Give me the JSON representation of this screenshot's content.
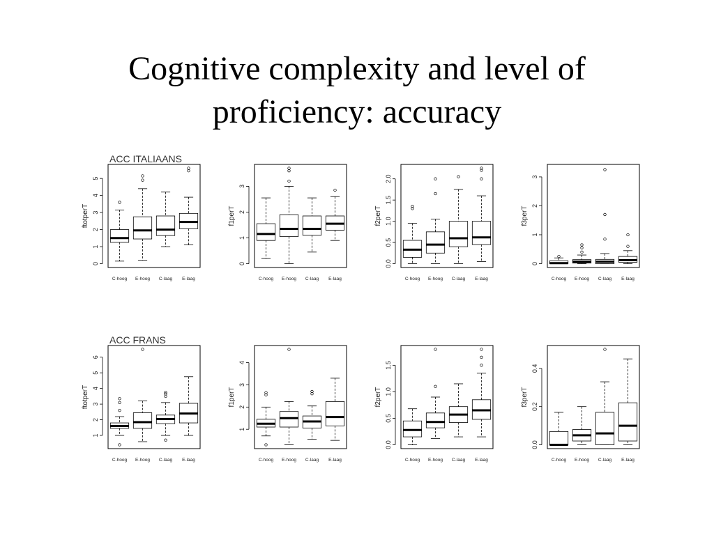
{
  "slide": {
    "title_line1": "Cognitive complexity and level of",
    "title_line2": "proficiency:  accuracy"
  },
  "chart_data": [
    {
      "type": "boxplot",
      "title": "ACC ITALIAANS",
      "ylabel": "ftotperT",
      "categories": [
        "C-hoog",
        "E-hoog",
        "C-laag",
        "E-laag"
      ],
      "ylim": [
        0,
        5.6
      ],
      "yticks": [
        0,
        1,
        2,
        3,
        4,
        5
      ],
      "boxes": [
        {
          "whisker_low": 0.15,
          "q1": 1.25,
          "median": 1.5,
          "q3": 2.0,
          "whisker_high": 3.15,
          "outliers": [
            3.6
          ]
        },
        {
          "whisker_low": 0.2,
          "q1": 1.45,
          "median": 1.95,
          "q3": 2.75,
          "whisker_high": 4.4,
          "outliers": [
            4.9,
            5.15
          ]
        },
        {
          "whisker_low": 1.0,
          "q1": 1.65,
          "median": 2.0,
          "q3": 2.8,
          "whisker_high": 4.2,
          "outliers": []
        },
        {
          "whisker_low": 1.1,
          "q1": 2.05,
          "median": 2.45,
          "q3": 2.95,
          "whisker_high": 3.9,
          "outliers": [
            5.45,
            5.6
          ]
        }
      ]
    },
    {
      "type": "boxplot",
      "title": "",
      "ylabel": "f1perT",
      "categories": [
        "C-hoog",
        "E-hoog",
        "C-laag",
        "E-laag"
      ],
      "ylim": [
        0,
        3.7
      ],
      "yticks": [
        0,
        1,
        2,
        3
      ],
      "boxes": [
        {
          "whisker_low": 0.2,
          "q1": 0.9,
          "median": 1.15,
          "q3": 1.55,
          "whisker_high": 2.55,
          "outliers": []
        },
        {
          "whisker_low": 0.0,
          "q1": 1.05,
          "median": 1.35,
          "q3": 1.9,
          "whisker_high": 3.0,
          "outliers": [
            3.2,
            3.6,
            3.7
          ]
        },
        {
          "whisker_low": 0.45,
          "q1": 1.1,
          "median": 1.35,
          "q3": 1.85,
          "whisker_high": 2.55,
          "outliers": []
        },
        {
          "whisker_low": 0.9,
          "q1": 1.3,
          "median": 1.55,
          "q3": 1.85,
          "whisker_high": 2.6,
          "outliers": [
            2.85
          ]
        }
      ]
    },
    {
      "type": "boxplot",
      "title": "",
      "ylabel": "f2perT",
      "categories": [
        "C-hoog",
        "E-hoog",
        "C-laag",
        "E-laag"
      ],
      "ylim": [
        0,
        2.25
      ],
      "yticks": [
        0,
        0.5,
        1.0,
        1.5,
        2.0
      ],
      "boxes": [
        {
          "whisker_low": 0.0,
          "q1": 0.15,
          "median": 0.33,
          "q3": 0.55,
          "whisker_high": 0.95,
          "outliers": [
            1.3,
            1.35
          ]
        },
        {
          "whisker_low": 0.0,
          "q1": 0.25,
          "median": 0.45,
          "q3": 0.75,
          "whisker_high": 1.05,
          "outliers": [
            1.65,
            2.0
          ]
        },
        {
          "whisker_low": 0.0,
          "q1": 0.4,
          "median": 0.6,
          "q3": 1.0,
          "whisker_high": 1.75,
          "outliers": [
            2.05
          ]
        },
        {
          "whisker_low": 0.05,
          "q1": 0.45,
          "median": 0.62,
          "q3": 1.0,
          "whisker_high": 1.6,
          "outliers": [
            2.0,
            2.2,
            2.25
          ]
        }
      ]
    },
    {
      "type": "boxplot",
      "title": "",
      "ylabel": "f3perT",
      "categories": [
        "C-hoog",
        "E-hoog",
        "C-laag",
        "E-laag"
      ],
      "ylim": [
        0,
        3.3
      ],
      "yticks": [
        0.0,
        1.0,
        2.0,
        3.0
      ],
      "boxes": [
        {
          "whisker_low": 0.0,
          "q1": 0.0,
          "median": 0.02,
          "q3": 0.1,
          "whisker_high": 0.2,
          "outliers": [
            0.25
          ]
        },
        {
          "whisker_low": 0.0,
          "q1": 0.02,
          "median": 0.07,
          "q3": 0.14,
          "whisker_high": 0.3,
          "outliers": [
            0.4,
            0.55,
            0.65
          ]
        },
        {
          "whisker_low": 0.0,
          "q1": 0.0,
          "median": 0.07,
          "q3": 0.15,
          "whisker_high": 0.35,
          "outliers": [
            0.85,
            1.7,
            3.25
          ]
        },
        {
          "whisker_low": 0.0,
          "q1": 0.05,
          "median": 0.12,
          "q3": 0.25,
          "whisker_high": 0.45,
          "outliers": [
            0.6,
            1.0
          ]
        }
      ]
    },
    {
      "type": "boxplot",
      "title": "ACC FRANS",
      "ylabel": "ftotperT",
      "categories": [
        "C-hoog",
        "E-hoog",
        "C-laag",
        "E-laag"
      ],
      "ylim": [
        0.4,
        6.5
      ],
      "yticks": [
        1,
        2,
        3,
        4,
        5,
        6
      ],
      "boxes": [
        {
          "whisker_low": 1.0,
          "q1": 1.45,
          "median": 1.6,
          "q3": 1.8,
          "whisker_high": 2.2,
          "outliers": [
            0.4,
            2.6,
            3.1,
            3.35
          ]
        },
        {
          "whisker_low": 0.6,
          "q1": 1.45,
          "median": 1.85,
          "q3": 2.45,
          "whisker_high": 3.2,
          "outliers": [
            6.5
          ]
        },
        {
          "whisker_low": 1.0,
          "q1": 1.75,
          "median": 2.05,
          "q3": 2.3,
          "whisker_high": 3.1,
          "outliers": [
            0.7,
            3.5,
            3.65,
            3.75
          ]
        },
        {
          "whisker_low": 1.0,
          "q1": 1.8,
          "median": 2.4,
          "q3": 3.05,
          "whisker_high": 4.75,
          "outliers": []
        }
      ]
    },
    {
      "type": "boxplot",
      "title": "",
      "ylabel": "f1perT",
      "categories": [
        "C-hoog",
        "E-hoog",
        "C-laag",
        "E-laag"
      ],
      "ylim": [
        0.3,
        4.6
      ],
      "yticks": [
        1,
        2,
        3,
        4
      ],
      "boxes": [
        {
          "whisker_low": 0.7,
          "q1": 1.1,
          "median": 1.25,
          "q3": 1.45,
          "whisker_high": 2.0,
          "outliers": [
            0.3,
            2.55,
            2.65
          ]
        },
        {
          "whisker_low": 0.3,
          "q1": 1.1,
          "median": 1.5,
          "q3": 1.8,
          "whisker_high": 2.25,
          "outliers": [
            4.6
          ]
        },
        {
          "whisker_low": 0.55,
          "q1": 1.05,
          "median": 1.35,
          "q3": 1.6,
          "whisker_high": 2.05,
          "outliers": [
            2.6,
            2.7
          ]
        },
        {
          "whisker_low": 0.5,
          "q1": 1.15,
          "median": 1.55,
          "q3": 2.25,
          "whisker_high": 3.3,
          "outliers": []
        }
      ]
    },
    {
      "type": "boxplot",
      "title": "",
      "ylabel": "f2perT",
      "categories": [
        "C-hoog",
        "E-hoog",
        "C-laag",
        "E-laag"
      ],
      "ylim": [
        0,
        1.8
      ],
      "yticks": [
        0.0,
        0.5,
        1.0,
        1.5
      ],
      "boxes": [
        {
          "whisker_low": 0.0,
          "q1": 0.15,
          "median": 0.28,
          "q3": 0.45,
          "whisker_high": 0.68,
          "outliers": []
        },
        {
          "whisker_low": 0.12,
          "q1": 0.32,
          "median": 0.43,
          "q3": 0.6,
          "whisker_high": 0.9,
          "outliers": [
            1.1,
            1.8
          ]
        },
        {
          "whisker_low": 0.15,
          "q1": 0.42,
          "median": 0.57,
          "q3": 0.72,
          "whisker_high": 1.15,
          "outliers": []
        },
        {
          "whisker_low": 0.15,
          "q1": 0.48,
          "median": 0.65,
          "q3": 0.85,
          "whisker_high": 1.35,
          "outliers": [
            1.5,
            1.65,
            1.8
          ]
        }
      ]
    },
    {
      "type": "boxplot",
      "title": "",
      "ylabel": "f3perT",
      "categories": [
        "C-hoog",
        "E-hoog",
        "C-laag",
        "E-laag"
      ],
      "ylim": [
        0,
        0.5
      ],
      "yticks": [
        0.0,
        0.2,
        0.4
      ],
      "boxes": [
        {
          "whisker_low": 0.0,
          "q1": 0.0,
          "median": 0.0,
          "q3": 0.07,
          "whisker_high": 0.17,
          "outliers": []
        },
        {
          "whisker_low": 0.0,
          "q1": 0.02,
          "median": 0.05,
          "q3": 0.08,
          "whisker_high": 0.2,
          "outliers": []
        },
        {
          "whisker_low": 0.0,
          "q1": 0.0,
          "median": 0.06,
          "q3": 0.17,
          "whisker_high": 0.33,
          "outliers": [
            0.5
          ]
        },
        {
          "whisker_low": 0.0,
          "q1": 0.02,
          "median": 0.1,
          "q3": 0.22,
          "whisker_high": 0.45,
          "outliers": []
        }
      ]
    }
  ]
}
